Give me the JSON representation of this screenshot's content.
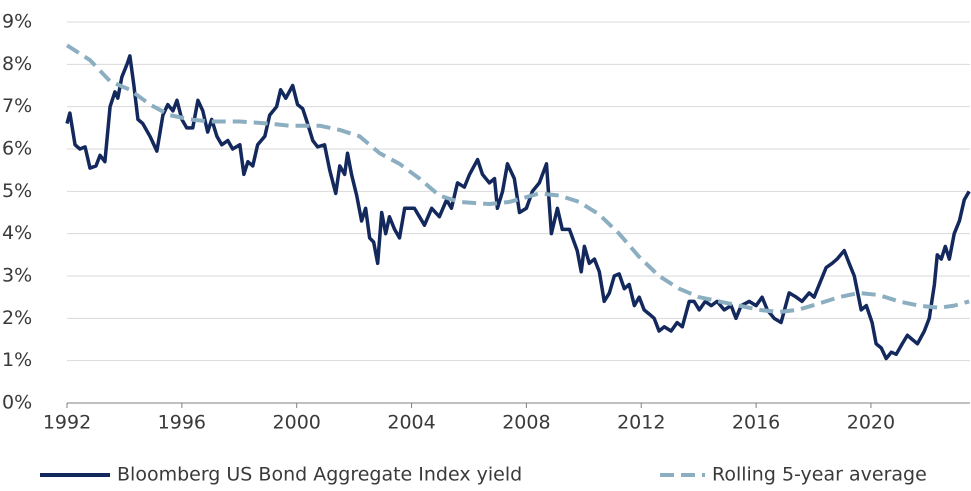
{
  "chart_data": {
    "type": "line",
    "xlim": [
      1992,
      2023.45
    ],
    "xticks": [
      1992,
      1996,
      2000,
      2004,
      2008,
      2012,
      2016,
      2020
    ],
    "ylim": [
      0,
      9
    ],
    "yticks": [
      {
        "value": 0,
        "label": "0%"
      },
      {
        "value": 1,
        "label": "1%"
      },
      {
        "value": 2,
        "label": "2%"
      },
      {
        "value": 3,
        "label": "3%"
      },
      {
        "value": 4,
        "label": "4%"
      },
      {
        "value": 5,
        "label": "5%"
      },
      {
        "value": 6,
        "label": "6%"
      },
      {
        "value": 7,
        "label": "7%"
      },
      {
        "value": 8,
        "label": "8%"
      },
      {
        "value": 9,
        "label": "9%"
      }
    ],
    "grid": true,
    "legend": "bottom",
    "series": [
      {
        "name": "Bloomberg US Bond Aggregate Index yield",
        "color": "#13285c",
        "dash": false,
        "x": [
          1992.0,
          1992.1,
          1992.28,
          1992.45,
          1992.63,
          1992.8,
          1993.01,
          1993.15,
          1993.32,
          1993.5,
          1993.67,
          1993.77,
          1993.91,
          1994.09,
          1994.19,
          1994.33,
          1994.47,
          1994.64,
          1994.89,
          1995.13,
          1995.34,
          1995.51,
          1995.69,
          1995.83,
          1996.0,
          1996.17,
          1996.38,
          1996.56,
          1996.73,
          1996.9,
          1997.04,
          1997.22,
          1997.39,
          1997.6,
          1997.77,
          1998.02,
          1998.16,
          1998.3,
          1998.47,
          1998.64,
          1998.89,
          1999.06,
          1999.3,
          1999.44,
          1999.62,
          1999.86,
          2000.03,
          2000.21,
          2000.38,
          2000.56,
          2000.73,
          2000.97,
          2001.15,
          2001.36,
          2001.5,
          2001.67,
          2001.77,
          2001.91,
          2002.09,
          2002.26,
          2002.4,
          2002.54,
          2002.68,
          2002.82,
          2002.96,
          2003.1,
          2003.23,
          2003.41,
          2003.58,
          2003.76,
          2003.93,
          2004.1,
          2004.45,
          2004.7,
          2004.97,
          2005.22,
          2005.39,
          2005.6,
          2005.84,
          2006.02,
          2006.3,
          2006.47,
          2006.71,
          2006.89,
          2006.99,
          2007.17,
          2007.34,
          2007.58,
          2007.76,
          2008.0,
          2008.21,
          2008.45,
          2008.7,
          2008.87,
          2009.08,
          2009.25,
          2009.5,
          2009.77,
          2009.91,
          2010.02,
          2010.19,
          2010.37,
          2010.54,
          2010.71,
          2010.89,
          2011.06,
          2011.23,
          2011.41,
          2011.58,
          2011.76,
          2011.93,
          2012.1,
          2012.28,
          2012.45,
          2012.62,
          2012.8,
          2013.04,
          2013.25,
          2013.43,
          2013.67,
          2013.84,
          2014.02,
          2014.23,
          2014.44,
          2014.64,
          2014.89,
          2015.13,
          2015.3,
          2015.48,
          2015.76,
          2016.0,
          2016.21,
          2016.39,
          2016.63,
          2016.87,
          2017.15,
          2017.4,
          2017.6,
          2017.85,
          2018.02,
          2018.2,
          2018.44,
          2018.65,
          2018.82,
          2019.07,
          2019.24,
          2019.42,
          2019.66,
          2019.84,
          2020.04,
          2020.18,
          2020.36,
          2020.53,
          2020.71,
          2020.88,
          2021.09,
          2021.27,
          2021.44,
          2021.62,
          2021.86,
          2022.03,
          2022.21,
          2022.31,
          2022.45,
          2022.59,
          2022.73,
          2022.9,
          2023.08,
          2023.25,
          2023.42
        ],
        "values": [
          6.6,
          6.85,
          6.1,
          6.0,
          6.05,
          5.55,
          5.6,
          5.85,
          5.7,
          7.0,
          7.35,
          7.2,
          7.7,
          8.0,
          8.2,
          7.5,
          6.7,
          6.6,
          6.3,
          5.95,
          6.8,
          7.05,
          6.9,
          7.15,
          6.7,
          6.5,
          6.5,
          7.15,
          6.9,
          6.4,
          6.7,
          6.3,
          6.1,
          6.2,
          6.0,
          6.1,
          5.4,
          5.7,
          5.6,
          6.1,
          6.3,
          6.8,
          7.0,
          7.4,
          7.2,
          7.5,
          7.05,
          6.95,
          6.6,
          6.2,
          6.05,
          6.1,
          5.5,
          4.95,
          5.6,
          5.4,
          5.9,
          5.4,
          4.9,
          4.3,
          4.6,
          3.9,
          3.8,
          3.3,
          4.5,
          4.0,
          4.4,
          4.1,
          3.9,
          4.6,
          4.6,
          4.6,
          4.2,
          4.6,
          4.4,
          4.8,
          4.6,
          5.2,
          5.1,
          5.4,
          5.75,
          5.4,
          5.2,
          5.3,
          4.6,
          5.0,
          5.65,
          5.3,
          4.5,
          4.6,
          5.0,
          5.2,
          5.65,
          4.0,
          4.6,
          4.1,
          4.1,
          3.6,
          3.1,
          3.7,
          3.3,
          3.4,
          3.1,
          2.4,
          2.6,
          3.0,
          3.05,
          2.7,
          2.8,
          2.3,
          2.5,
          2.2,
          2.1,
          2.0,
          1.7,
          1.8,
          1.7,
          1.9,
          1.8,
          2.4,
          2.4,
          2.2,
          2.4,
          2.3,
          2.4,
          2.2,
          2.3,
          2.0,
          2.3,
          2.4,
          2.3,
          2.5,
          2.2,
          2.0,
          1.9,
          2.6,
          2.5,
          2.4,
          2.6,
          2.5,
          2.8,
          3.2,
          3.3,
          3.4,
          3.6,
          3.3,
          3.0,
          2.2,
          2.3,
          1.9,
          1.4,
          1.3,
          1.05,
          1.2,
          1.15,
          1.4,
          1.6,
          1.5,
          1.4,
          1.7,
          2.0,
          2.8,
          3.5,
          3.4,
          3.7,
          3.4,
          4.0,
          4.3,
          4.8,
          5.0
        ]
      },
      {
        "name": "Rolling 5-year average",
        "color": "#8caec1",
        "dash": true,
        "x": [
          1992.0,
          1992.8,
          1993.5,
          1994.19,
          1994.89,
          1995.58,
          1996.28,
          1996.97,
          1998.02,
          1999.06,
          1999.76,
          2000.8,
          2001.5,
          2002.19,
          2002.89,
          2003.58,
          2004.28,
          2004.97,
          2005.67,
          2006.71,
          2007.41,
          2008.45,
          2009.15,
          2009.84,
          2010.54,
          2011.23,
          2011.93,
          2012.62,
          2013.32,
          2014.02,
          2014.71,
          2015.41,
          2016.1,
          2016.8,
          2017.45,
          2018.19,
          2018.89,
          2019.58,
          2020.28,
          2020.97,
          2021.67,
          2022.37,
          2022.9,
          2023.42
        ],
        "values": [
          8.45,
          8.1,
          7.6,
          7.4,
          7.05,
          6.8,
          6.7,
          6.65,
          6.65,
          6.6,
          6.55,
          6.55,
          6.45,
          6.3,
          5.9,
          5.65,
          5.3,
          4.9,
          4.75,
          4.7,
          4.75,
          4.95,
          4.9,
          4.75,
          4.45,
          4.0,
          3.45,
          3.0,
          2.7,
          2.5,
          2.4,
          2.3,
          2.2,
          2.15,
          2.2,
          2.35,
          2.5,
          2.6,
          2.55,
          2.4,
          2.3,
          2.25,
          2.3,
          2.4
        ]
      }
    ]
  }
}
